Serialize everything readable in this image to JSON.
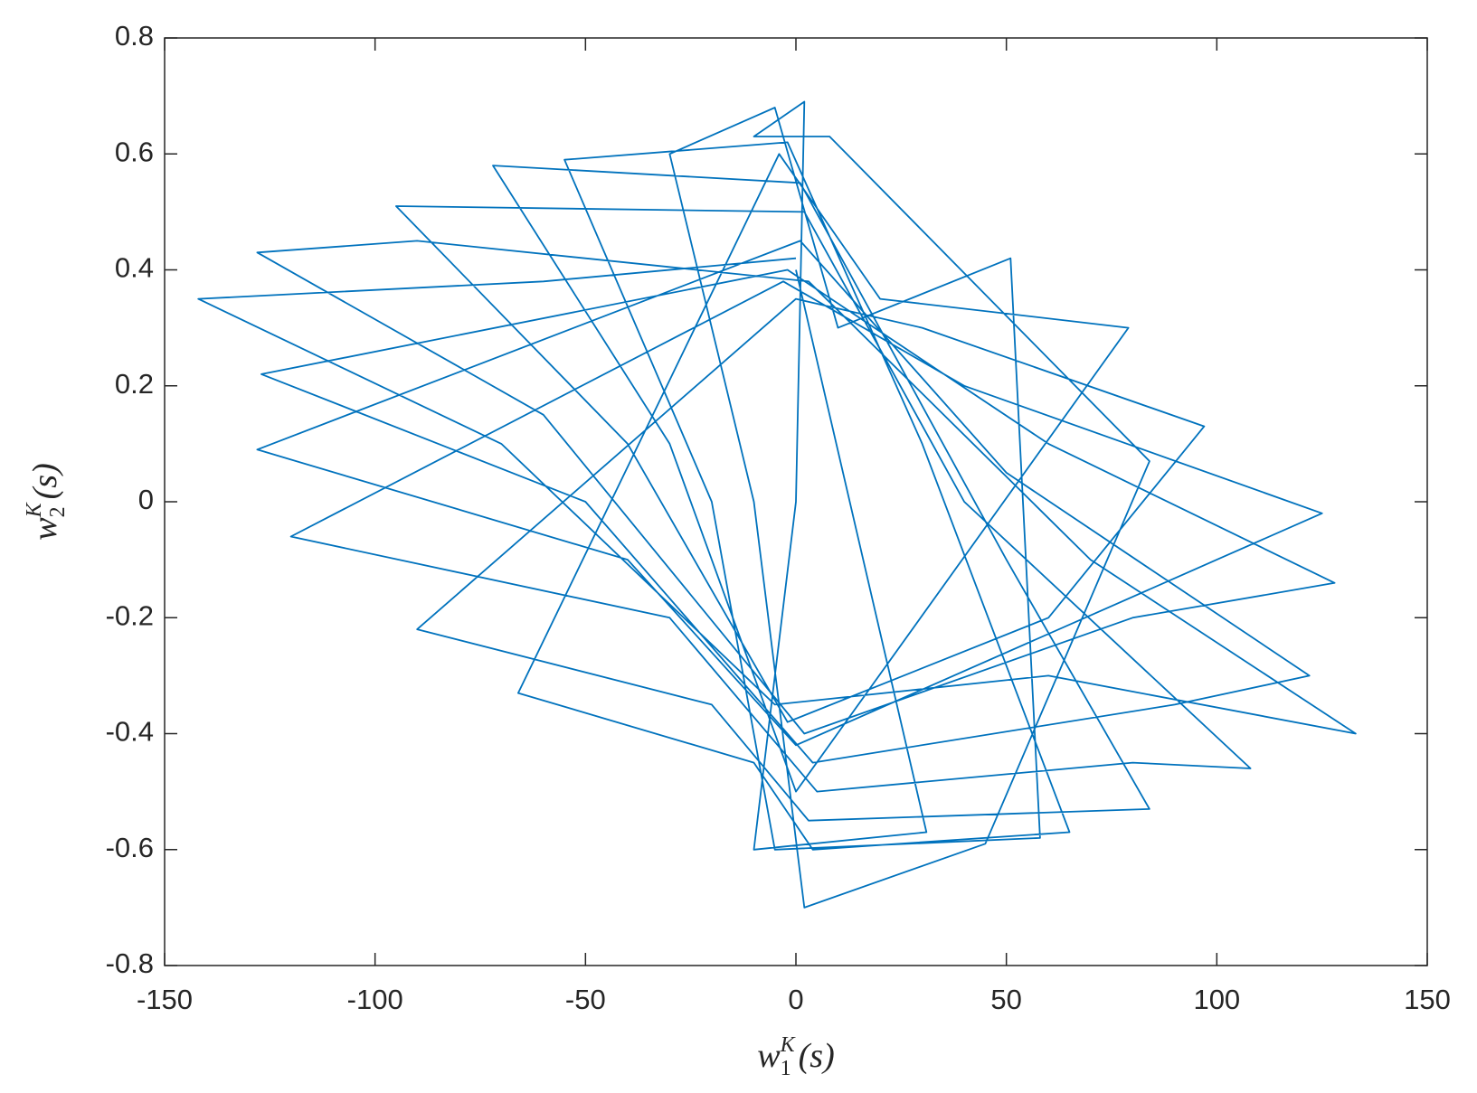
{
  "chart_data": {
    "type": "line",
    "xlabel": {
      "symbol": "w",
      "sub": "1",
      "sup": "K",
      "arg": "(s)"
    },
    "ylabel": {
      "symbol": "w",
      "sub": "2",
      "sup": "K",
      "arg": "(s)"
    },
    "xlim": [
      -150,
      150
    ],
    "xticks": [
      -150,
      -100,
      -50,
      0,
      50,
      100,
      150
    ],
    "ylim": [
      -0.8,
      0.8
    ],
    "yticks": [
      -0.8,
      -0.6,
      -0.4,
      -0.2,
      0,
      0.2,
      0.4,
      0.6,
      0.8
    ],
    "grid": false,
    "series": [
      {
        "color": "#0072bd",
        "x": [
          0,
          -60,
          -142,
          -70,
          -5,
          60,
          133,
          70,
          3,
          -90,
          -128,
          -60,
          2,
          80,
          128,
          60,
          -2,
          -127,
          -50,
          4,
          90,
          122,
          50,
          1,
          -128,
          -40,
          0,
          100,
          125,
          40,
          -3,
          -120,
          -30,
          5,
          80,
          108,
          40,
          2,
          -95,
          -40,
          -2,
          60,
          97,
          30,
          0,
          -90,
          -20,
          3,
          84,
          50,
          1,
          -72,
          -30,
          0,
          79,
          20,
          -4,
          -66,
          -10,
          4,
          65,
          30,
          -2,
          -55,
          -20,
          -5,
          58,
          51,
          10,
          -5,
          -30,
          -10,
          2,
          45,
          84,
          8,
          -10,
          2,
          0,
          -10,
          31,
          0
        ],
        "values": [
          0.42,
          0.38,
          0.35,
          0.1,
          -0.35,
          -0.3,
          -0.4,
          -0.1,
          0.38,
          0.45,
          0.43,
          0.15,
          -0.4,
          -0.2,
          -0.14,
          0.1,
          0.4,
          0.22,
          0,
          -0.45,
          -0.35,
          -0.3,
          0.05,
          0.45,
          0.09,
          -0.1,
          -0.42,
          -0.1,
          -0.02,
          0.2,
          0.38,
          -0.06,
          -0.2,
          -0.5,
          -0.45,
          -0.46,
          0,
          0.5,
          0.51,
          0.1,
          -0.38,
          -0.2,
          0.13,
          0.3,
          0.35,
          -0.22,
          -0.35,
          -0.55,
          -0.53,
          -0.1,
          0.55,
          0.58,
          0.1,
          -0.5,
          0.3,
          0.35,
          0.6,
          -0.33,
          -0.45,
          -0.6,
          -0.57,
          0.1,
          0.62,
          0.59,
          0,
          -0.6,
          -0.58,
          0.42,
          0.3,
          0.68,
          0.6,
          0,
          -0.7,
          -0.59,
          0.07,
          0.63,
          0.63,
          0.69,
          0,
          -0.6,
          -0.57,
          0.4
        ]
      }
    ]
  }
}
